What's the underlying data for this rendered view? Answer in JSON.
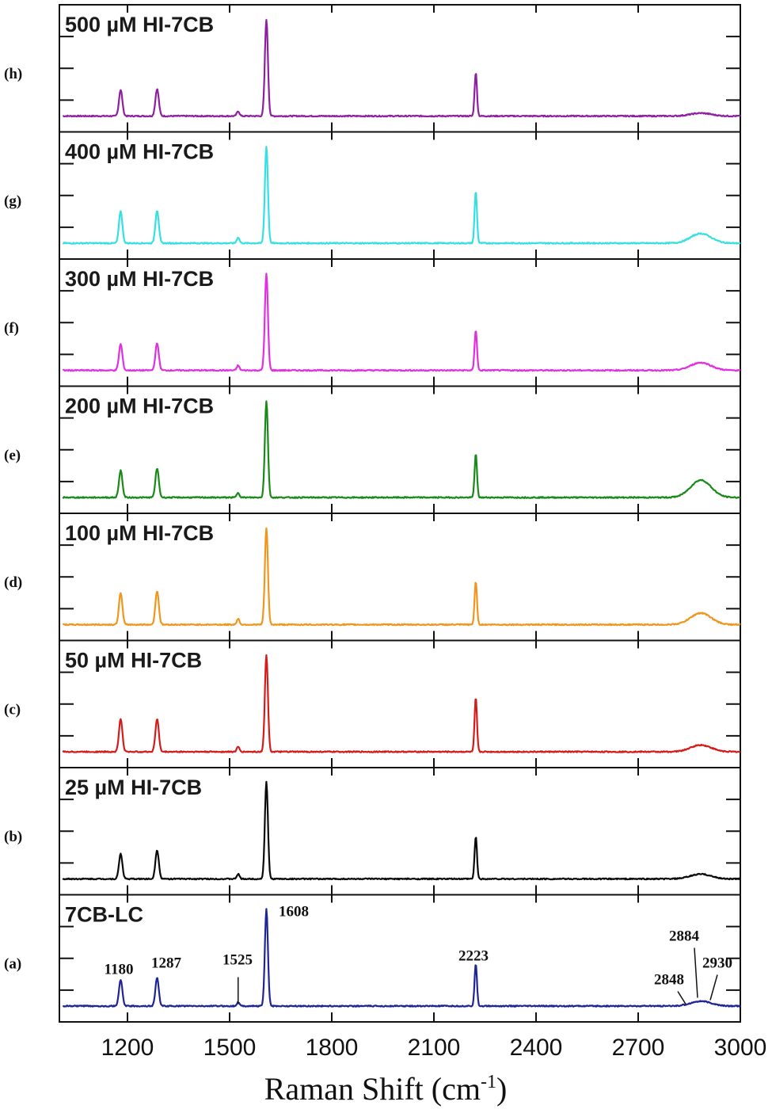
{
  "chart_data": {
    "type": "line",
    "xlabel_main": "Raman Shift (cm",
    "xlabel_sup": "-1",
    "xlabel_end": ")",
    "xlim": [
      1000,
      3000
    ],
    "xticks": [
      1200,
      1500,
      1800,
      2100,
      2400,
      2700,
      3000
    ],
    "panels": [
      {
        "letter": "(h)",
        "label": "500 µM HI-7CB",
        "color": "#8e1fa0",
        "peaks": {
          "1180": 0.27,
          "1287": 0.28,
          "1525": 0.05,
          "1608": 1.0,
          "2223": 0.45,
          "2884": 0.03
        }
      },
      {
        "letter": "(g)",
        "label": "400 µM HI-7CB",
        "color": "#35e0e0",
        "peaks": {
          "1180": 0.33,
          "1287": 0.34,
          "1525": 0.06,
          "1608": 1.0,
          "2223": 0.54,
          "2884": 0.1
        }
      },
      {
        "letter": "(f)",
        "label": "300 µM HI-7CB",
        "color": "#e030e0",
        "peaks": {
          "1180": 0.27,
          "1287": 0.28,
          "1525": 0.05,
          "1608": 1.0,
          "2223": 0.42,
          "2884": 0.08
        }
      },
      {
        "letter": "(e)",
        "label": "200 µM HI-7CB",
        "color": "#198a19",
        "peaks": {
          "1180": 0.28,
          "1287": 0.3,
          "1525": 0.05,
          "1608": 1.0,
          "2223": 0.45,
          "2884": 0.18
        }
      },
      {
        "letter": "(d)",
        "label": "100 µM HI-7CB",
        "color": "#f0961e",
        "peaks": {
          "1180": 0.33,
          "1287": 0.35,
          "1525": 0.06,
          "1608": 1.0,
          "2223": 0.45,
          "2884": 0.12
        }
      },
      {
        "letter": "(c)",
        "label": "50 µM HI-7CB",
        "color": "#d41c1c",
        "peaks": {
          "1180": 0.34,
          "1287": 0.34,
          "1525": 0.05,
          "1608": 1.0,
          "2223": 0.56,
          "2884": 0.07
        }
      },
      {
        "letter": "(b)",
        "label": "25 µM HI-7CB",
        "color": "#0a0a0a",
        "peaks": {
          "1180": 0.26,
          "1287": 0.3,
          "1525": 0.05,
          "1608": 1.0,
          "2223": 0.44,
          "2884": 0.05
        }
      },
      {
        "letter": "(a)",
        "label": "7CB-LC",
        "color": "#1f2496",
        "peaks": {
          "1180": 0.27,
          "1287": 0.29,
          "1525": 0.04,
          "1608": 1.0,
          "2223": 0.44,
          "2884": 0.05
        }
      }
    ],
    "annotations": [
      "1180",
      "1287",
      "1525",
      "1608",
      "2223",
      "2848",
      "2884",
      "2930"
    ]
  }
}
